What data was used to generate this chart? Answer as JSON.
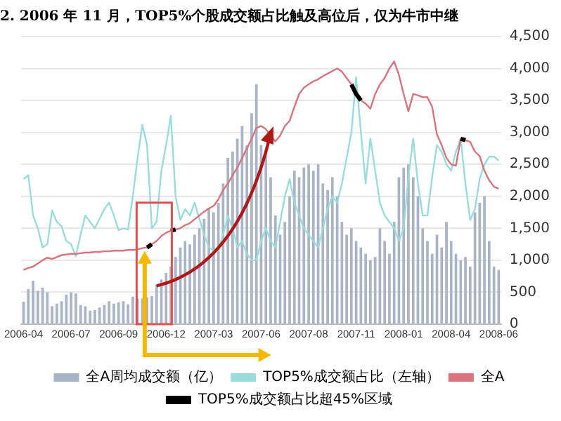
{
  "chart_data": {
    "type": "bar",
    "title": "2. 2006 年 11 月，TOP5%个股成交额占比触及高位后，仅为牛市中继",
    "categories": [
      "2006-04",
      null,
      null,
      null,
      null,
      null,
      null,
      null,
      null,
      null,
      "2006-07",
      null,
      null,
      null,
      null,
      null,
      null,
      null,
      null,
      null,
      "2006-09",
      null,
      null,
      null,
      null,
      null,
      null,
      null,
      null,
      null,
      "2006-12",
      null,
      null,
      null,
      null,
      null,
      null,
      null,
      null,
      null,
      "2007-03",
      null,
      null,
      null,
      null,
      null,
      null,
      null,
      null,
      null,
      "2007-06",
      null,
      null,
      null,
      null,
      null,
      null,
      null,
      null,
      null,
      "2007-08",
      null,
      null,
      null,
      null,
      null,
      null,
      null,
      null,
      null,
      "2007-11",
      null,
      null,
      null,
      null,
      null,
      null,
      null,
      null,
      null,
      "2008-01",
      null,
      null,
      null,
      null,
      null,
      null,
      null,
      null,
      null,
      "2008-04",
      null,
      null,
      null,
      null,
      null,
      null,
      null,
      null,
      null,
      "2008-06"
    ],
    "series": [
      {
        "name": "全A周均成交额（亿）",
        "color": "#aab4c8",
        "values": [
          350,
          550,
          680,
          520,
          570,
          500,
          280,
          320,
          360,
          460,
          500,
          480,
          300,
          280,
          210,
          220,
          260,
          300,
          360,
          320,
          340,
          360,
          310,
          430,
          400,
          400,
          420,
          440,
          620,
          700,
          800,
          900,
          1050,
          1200,
          1300,
          1250,
          1400,
          1500,
          1650,
          1800,
          1750,
          1900,
          2200,
          2600,
          2700,
          2900,
          3100,
          2800,
          3300,
          3750,
          2800,
          2700,
          2300,
          1700,
          1400,
          1600,
          2000,
          2400,
          2300,
          2450,
          2500,
          2400,
          2500,
          2200,
          2100,
          2300,
          2000,
          1600,
          1400,
          1500,
          1300,
          1200,
          1100,
          1000,
          1050,
          1500,
          1300,
          1100,
          1600,
          2300,
          2450,
          2500,
          2300,
          2000,
          1500,
          1300,
          1100,
          1400,
          1200,
          1600,
          1300,
          1100,
          1000,
          1050,
          900,
          1750,
          1900,
          2000,
          1300,
          900,
          850
        ]
      },
      {
        "name": "TOP5%成交额占比（左轴）",
        "type": "line",
        "color": "#9adcdc",
        "values": [
          2270,
          2330,
          1700,
          1500,
          1200,
          1250,
          1780,
          1600,
          1530,
          1300,
          1250,
          1060,
          1400,
          1700,
          1600,
          1500,
          1650,
          1800,
          1900,
          1700,
          1470,
          1500,
          1480,
          2000,
          2600,
          3120,
          2800,
          1500,
          1600,
          2400,
          2800,
          3260,
          2000,
          1630,
          1800,
          1700,
          1900,
          1650,
          1400,
          1200,
          1150,
          1150,
          1400,
          1700,
          1500,
          1200,
          1300,
          1100,
          1000,
          1000,
          1300,
          1500,
          1300,
          1200,
          1600,
          2000,
          2270,
          1900,
          1700,
          1500,
          1400,
          1300,
          1200,
          1500,
          1800,
          2000,
          1900,
          2200,
          2600,
          3000,
          3860,
          3000,
          2200,
          2900,
          2400,
          1900,
          1700,
          1600,
          1500,
          1300,
          1500,
          2300,
          2900,
          2200,
          1700,
          1700,
          2300,
          2800,
          2700,
          2500,
          2400,
          2700,
          2900,
          2200,
          1630,
          1800,
          2270,
          2500,
          2620,
          2620,
          2560
        ]
      },
      {
        "name": "全A",
        "type": "line",
        "color": "#d9747e",
        "values": [
          850,
          880,
          900,
          950,
          1000,
          1040,
          1020,
          1050,
          1080,
          1090,
          1100,
          1100,
          1110,
          1120,
          1120,
          1130,
          1130,
          1140,
          1140,
          1150,
          1150,
          1150,
          1160,
          1160,
          1170,
          1190,
          1200,
          1250,
          1300,
          1380,
          1430,
          1460,
          1480,
          1500,
          1550,
          1580,
          1640,
          1700,
          1760,
          1810,
          1850,
          1950,
          2100,
          2200,
          2330,
          2450,
          2600,
          2750,
          2900,
          3070,
          3100,
          3050,
          2950,
          2860,
          2950,
          3100,
          3180,
          3400,
          3600,
          3700,
          3750,
          3800,
          3830,
          3880,
          3920,
          3960,
          4000,
          3950,
          3850,
          3750,
          3600,
          3500,
          3450,
          3370,
          3600,
          3750,
          3850,
          4000,
          4110,
          3900,
          3600,
          3330,
          3600,
          3580,
          3550,
          3550,
          3400,
          2970,
          2800,
          2600,
          2500,
          2480,
          2900,
          2880,
          2850,
          2700,
          2630,
          2400,
          2250,
          2150,
          2120
        ]
      },
      {
        "name": "TOP5%成交额占比超45%区域",
        "type": "line",
        "color": "#000000",
        "values": [
          null,
          null,
          null,
          null,
          null,
          null,
          null,
          null,
          null,
          null,
          null,
          null,
          null,
          null,
          null,
          null,
          null,
          null,
          null,
          null,
          null,
          null,
          null,
          null,
          null,
          null,
          1200,
          1250,
          null,
          null,
          null,
          1460,
          1480,
          null,
          null,
          null,
          null,
          null,
          null,
          null,
          null,
          null,
          null,
          null,
          null,
          null,
          null,
          null,
          null,
          null,
          null,
          null,
          null,
          null,
          null,
          null,
          null,
          null,
          null,
          null,
          null,
          null,
          null,
          null,
          null,
          null,
          null,
          null,
          null,
          3750,
          3600,
          3500,
          null,
          null,
          null,
          null,
          null,
          null,
          null,
          null,
          null,
          null,
          null,
          null,
          null,
          null,
          null,
          null,
          null,
          null,
          null,
          null,
          2900,
          2880,
          null,
          null,
          null,
          null,
          null,
          null,
          null
        ]
      }
    ],
    "ylim": [
      0,
      4500
    ],
    "yticks": [
      0,
      500,
      {
        "value": 1000,
        "label": "1,000"
      },
      {
        "value": 1500,
        "label": "1,500"
      },
      {
        "value": 2000,
        "label": "2,000"
      },
      {
        "value": 2500,
        "label": "2,500"
      },
      {
        "value": 3000,
        "label": "3,000"
      },
      {
        "value": 3500,
        "label": "3,500"
      },
      {
        "value": 4000,
        "label": "4,000"
      },
      {
        "value": 4500,
        "label": "4,500"
      }
    ],
    "grid": "y",
    "legend": "bottom",
    "marker": "none",
    "line_style": "solid"
  }
}
